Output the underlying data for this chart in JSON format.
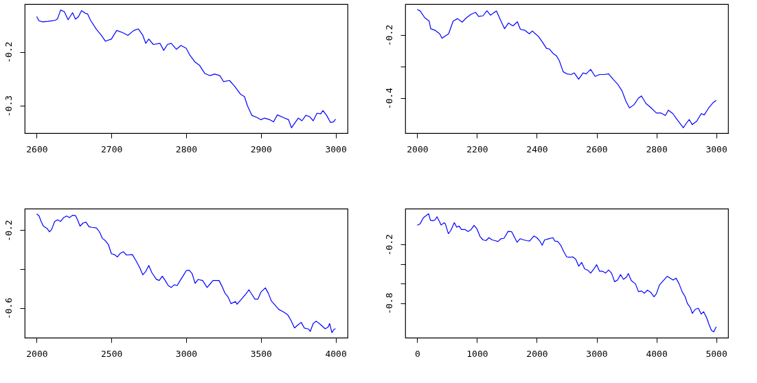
{
  "chart_data": [
    {
      "type": "line",
      "xlim": [
        2584,
        3016
      ],
      "ylim": [
        -0.351,
        -0.111
      ],
      "xticks": [
        2600,
        2700,
        2800,
        2900,
        3000
      ],
      "yticks": [
        -0.2,
        -0.3
      ],
      "grid": false,
      "series": [
        {
          "color": "#0000ff",
          "x": [
            2600,
            2603,
            2608,
            2615,
            2620,
            2625,
            2628,
            2632,
            2637,
            2642,
            2648,
            2652,
            2656,
            2660,
            2665,
            2668,
            2672,
            2680,
            2686,
            2692,
            2700,
            2707,
            2715,
            2722,
            2730,
            2736,
            2742,
            2746,
            2750,
            2756,
            2765,
            2770,
            2775,
            2780,
            2787,
            2793,
            2800,
            2805,
            2812,
            2818,
            2825,
            2832,
            2838,
            2845,
            2850,
            2858,
            2865,
            2873,
            2878,
            2882,
            2888,
            2895,
            2900,
            2905,
            2912,
            2917,
            2922,
            2930,
            2937,
            2941,
            2945,
            2950,
            2955,
            2960,
            2965,
            2970,
            2975,
            2980,
            2983,
            2988,
            2993,
            2997,
            3000
          ],
          "values": [
            -0.134,
            -0.142,
            -0.144,
            -0.143,
            -0.142,
            -0.141,
            -0.138,
            -0.122,
            -0.125,
            -0.14,
            -0.127,
            -0.139,
            -0.134,
            -0.123,
            -0.128,
            -0.129,
            -0.141,
            -0.158,
            -0.168,
            -0.18,
            -0.176,
            -0.16,
            -0.164,
            -0.169,
            -0.16,
            -0.157,
            -0.169,
            -0.184,
            -0.176,
            -0.186,
            -0.184,
            -0.197,
            -0.186,
            -0.184,
            -0.195,
            -0.188,
            -0.193,
            -0.206,
            -0.219,
            -0.225,
            -0.24,
            -0.244,
            -0.241,
            -0.244,
            -0.255,
            -0.253,
            -0.264,
            -0.279,
            -0.283,
            -0.3,
            -0.318,
            -0.322,
            -0.326,
            -0.323,
            -0.326,
            -0.33,
            -0.317,
            -0.322,
            -0.326,
            -0.341,
            -0.333,
            -0.323,
            -0.328,
            -0.318,
            -0.32,
            -0.328,
            -0.314,
            -0.315,
            -0.309,
            -0.318,
            -0.331,
            -0.33,
            -0.325
          ]
        }
      ]
    },
    {
      "type": "line",
      "xlim": [
        1960,
        3040
      ],
      "ylim": [
        -0.511,
        -0.102
      ],
      "xticks": [
        2000,
        2200,
        2400,
        2600,
        2800,
        3000
      ],
      "yticks": [
        -0.2,
        {
          "value": -0.3,
          "label": null
        },
        -0.4
      ],
      "grid": false,
      "series": [
        {
          "color": "#0000ff",
          "x": [
            2000,
            2010,
            2025,
            2040,
            2045,
            2060,
            2075,
            2083,
            2095,
            2105,
            2120,
            2135,
            2150,
            2165,
            2180,
            2195,
            2205,
            2220,
            2233,
            2245,
            2255,
            2265,
            2280,
            2292,
            2305,
            2320,
            2335,
            2345,
            2360,
            2375,
            2385,
            2395,
            2405,
            2420,
            2432,
            2442,
            2455,
            2465,
            2475,
            2488,
            2500,
            2515,
            2525,
            2540,
            2555,
            2565,
            2580,
            2595,
            2610,
            2625,
            2640,
            2655,
            2670,
            2685,
            2698,
            2710,
            2725,
            2740,
            2750,
            2765,
            2780,
            2800,
            2815,
            2830,
            2840,
            2855,
            2870,
            2890,
            2900,
            2910,
            2920,
            2935,
            2950,
            2960,
            2975,
            2990,
            3000
          ],
          "values": [
            -0.119,
            -0.124,
            -0.145,
            -0.156,
            -0.18,
            -0.185,
            -0.196,
            -0.21,
            -0.202,
            -0.196,
            -0.156,
            -0.148,
            -0.159,
            -0.145,
            -0.134,
            -0.128,
            -0.141,
            -0.139,
            -0.123,
            -0.137,
            -0.13,
            -0.124,
            -0.156,
            -0.18,
            -0.162,
            -0.171,
            -0.158,
            -0.182,
            -0.185,
            -0.196,
            -0.187,
            -0.196,
            -0.204,
            -0.224,
            -0.242,
            -0.244,
            -0.259,
            -0.265,
            -0.281,
            -0.316,
            -0.323,
            -0.325,
            -0.32,
            -0.34,
            -0.32,
            -0.323,
            -0.309,
            -0.331,
            -0.325,
            -0.325,
            -0.323,
            -0.34,
            -0.355,
            -0.377,
            -0.41,
            -0.431,
            -0.421,
            -0.4,
            -0.393,
            -0.417,
            -0.429,
            -0.447,
            -0.447,
            -0.455,
            -0.438,
            -0.449,
            -0.469,
            -0.494,
            -0.48,
            -0.468,
            -0.484,
            -0.473,
            -0.449,
            -0.453,
            -0.431,
            -0.414,
            -0.407
          ]
        }
      ]
    },
    {
      "type": "line",
      "xlim": [
        1920,
        4080
      ],
      "ylim": [
        -0.752,
        -0.089
      ],
      "xticks": [
        2000,
        2500,
        3000,
        3500,
        4000
      ],
      "yticks": [
        -0.2,
        {
          "value": -0.4,
          "label": null
        },
        -0.6
      ],
      "grid": false,
      "series": [
        {
          "color": "#0000ff",
          "x": [
            2000,
            2015,
            2030,
            2045,
            2070,
            2085,
            2100,
            2120,
            2140,
            2160,
            2180,
            2200,
            2220,
            2240,
            2260,
            2275,
            2290,
            2310,
            2330,
            2350,
            2370,
            2400,
            2420,
            2440,
            2460,
            2480,
            2500,
            2520,
            2540,
            2560,
            2580,
            2600,
            2640,
            2665,
            2690,
            2710,
            2730,
            2750,
            2770,
            2800,
            2820,
            2840,
            2860,
            2880,
            2900,
            2920,
            2940,
            2960,
            2980,
            3000,
            3020,
            3040,
            3060,
            3080,
            3110,
            3140,
            3160,
            3180,
            3220,
            3240,
            3260,
            3280,
            3300,
            3330,
            3340,
            3370,
            3400,
            3420,
            3440,
            3460,
            3480,
            3500,
            3530,
            3550,
            3570,
            3600,
            3620,
            3650,
            3680,
            3700,
            3725,
            3750,
            3770,
            3790,
            3820,
            3830,
            3850,
            3870,
            3900,
            3930,
            3950,
            3960,
            3975,
            3990,
            4000
          ],
          "values": [
            -0.116,
            -0.125,
            -0.155,
            -0.179,
            -0.191,
            -0.208,
            -0.196,
            -0.155,
            -0.146,
            -0.155,
            -0.135,
            -0.127,
            -0.135,
            -0.123,
            -0.125,
            -0.149,
            -0.179,
            -0.163,
            -0.158,
            -0.182,
            -0.185,
            -0.188,
            -0.208,
            -0.242,
            -0.254,
            -0.274,
            -0.321,
            -0.325,
            -0.337,
            -0.318,
            -0.31,
            -0.327,
            -0.325,
            -0.357,
            -0.393,
            -0.429,
            -0.411,
            -0.381,
            -0.417,
            -0.452,
            -0.458,
            -0.436,
            -0.458,
            -0.484,
            -0.494,
            -0.48,
            -0.484,
            -0.458,
            -0.434,
            -0.408,
            -0.405,
            -0.423,
            -0.473,
            -0.453,
            -0.458,
            -0.494,
            -0.476,
            -0.458,
            -0.458,
            -0.488,
            -0.524,
            -0.542,
            -0.577,
            -0.566,
            -0.58,
            -0.554,
            -0.527,
            -0.506,
            -0.53,
            -0.554,
            -0.554,
            -0.518,
            -0.496,
            -0.524,
            -0.563,
            -0.589,
            -0.607,
            -0.619,
            -0.635,
            -0.661,
            -0.702,
            -0.685,
            -0.673,
            -0.702,
            -0.708,
            -0.72,
            -0.679,
            -0.667,
            -0.685,
            -0.706,
            -0.697,
            -0.679,
            -0.726,
            -0.708,
            -0.706
          ]
        }
      ]
    },
    {
      "type": "line",
      "xlim": [
        -200,
        5200
      ],
      "ylim": [
        -1.154,
        0.168
      ],
      "xticks": [
        0,
        1000,
        2000,
        3000,
        4000,
        5000
      ],
      "yticks": [
        -0.2,
        {
          "value": -0.4,
          "label": null
        },
        {
          "value": -0.6,
          "label": null
        },
        -0.8
      ],
      "grid": false,
      "series": [
        {
          "color": "#0000ff",
          "x": [
            0,
            50,
            100,
            150,
            190,
            220,
            260,
            300,
            330,
            370,
            400,
            450,
            470,
            520,
            560,
            620,
            660,
            700,
            740,
            800,
            850,
            900,
            950,
            1000,
            1050,
            1100,
            1150,
            1200,
            1250,
            1300,
            1350,
            1400,
            1450,
            1520,
            1580,
            1620,
            1670,
            1720,
            1780,
            1830,
            1880,
            1950,
            2000,
            2050,
            2090,
            2130,
            2200,
            2270,
            2300,
            2350,
            2400,
            2450,
            2500,
            2550,
            2600,
            2650,
            2700,
            2750,
            2800,
            2850,
            2900,
            2950,
            3000,
            3050,
            3100,
            3150,
            3200,
            3250,
            3300,
            3350,
            3400,
            3450,
            3500,
            3530,
            3580,
            3650,
            3700,
            3750,
            3800,
            3850,
            3900,
            3960,
            4000,
            4050,
            4100,
            4180,
            4230,
            4280,
            4330,
            4380,
            4430,
            4480,
            4520,
            4570,
            4600,
            4650,
            4700,
            4750,
            4790,
            4840,
            4880,
            4920,
            4960,
            5000
          ],
          "values": [
            -0.003,
            0.014,
            0.073,
            0.097,
            0.116,
            0.049,
            0.044,
            0.054,
            0.085,
            0.038,
            0.0,
            0.024,
            0.012,
            -0.088,
            -0.057,
            0.025,
            -0.022,
            -0.01,
            -0.046,
            -0.046,
            -0.065,
            -0.046,
            -0.003,
            -0.041,
            -0.117,
            -0.152,
            -0.159,
            -0.129,
            -0.152,
            -0.159,
            -0.169,
            -0.14,
            -0.136,
            -0.065,
            -0.069,
            -0.117,
            -0.176,
            -0.14,
            -0.152,
            -0.159,
            -0.164,
            -0.112,
            -0.129,
            -0.164,
            -0.207,
            -0.152,
            -0.14,
            -0.129,
            -0.164,
            -0.169,
            -0.207,
            -0.271,
            -0.326,
            -0.33,
            -0.326,
            -0.349,
            -0.421,
            -0.383,
            -0.449,
            -0.461,
            -0.492,
            -0.454,
            -0.406,
            -0.473,
            -0.473,
            -0.492,
            -0.461,
            -0.492,
            -0.58,
            -0.563,
            -0.508,
            -0.556,
            -0.532,
            -0.497,
            -0.568,
            -0.603,
            -0.682,
            -0.675,
            -0.698,
            -0.667,
            -0.686,
            -0.734,
            -0.703,
            -0.615,
            -0.58,
            -0.525,
            -0.544,
            -0.563,
            -0.544,
            -0.603,
            -0.682,
            -0.734,
            -0.805,
            -0.848,
            -0.905,
            -0.864,
            -0.852,
            -0.912,
            -0.888,
            -0.948,
            -1.019,
            -1.078,
            -1.094,
            -1.042
          ]
        }
      ]
    }
  ]
}
